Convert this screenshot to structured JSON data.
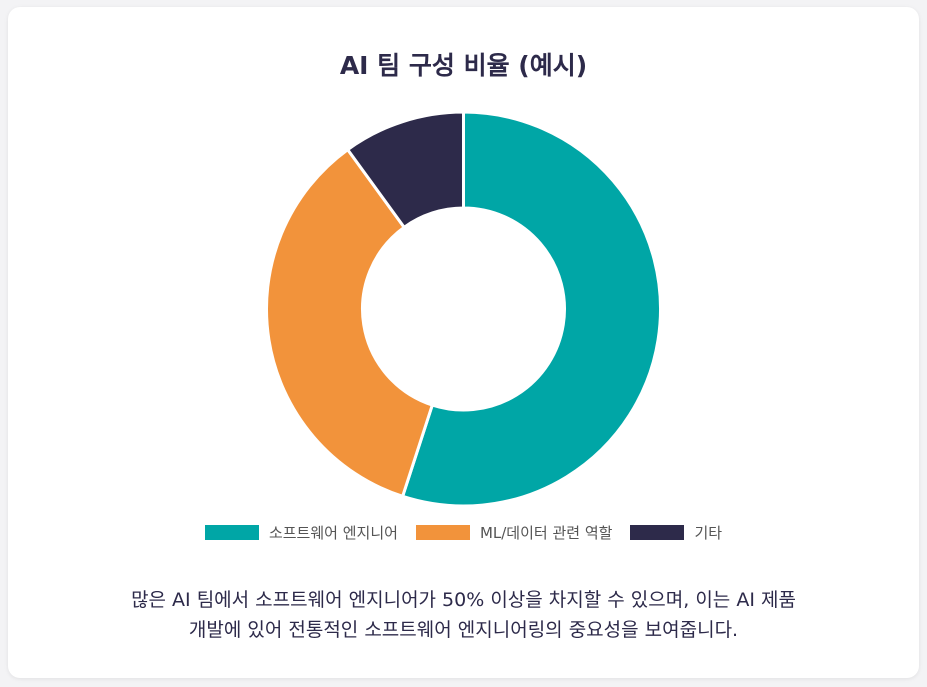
{
  "chart_data": {
    "type": "pie",
    "title": "AI 팀 구성 비율 (예시)",
    "categories": [
      "소프트웨어 엔지니어",
      "ML/데이터 관련 역할",
      "기타"
    ],
    "values": [
      55,
      35,
      10
    ],
    "colors": [
      "#00a6a6",
      "#f2933b",
      "#2d2a4a"
    ],
    "legend_position": "bottom"
  },
  "caption": {
    "line1": "많은 AI 팀에서 소프트웨어 엔지니어가 50% 이상을 차지할 수 있으며, 이는 AI 제품",
    "line2": "개발에 있어 전통적인 소프트웨어 엔지니어링의 중요성을 보여줍니다."
  }
}
